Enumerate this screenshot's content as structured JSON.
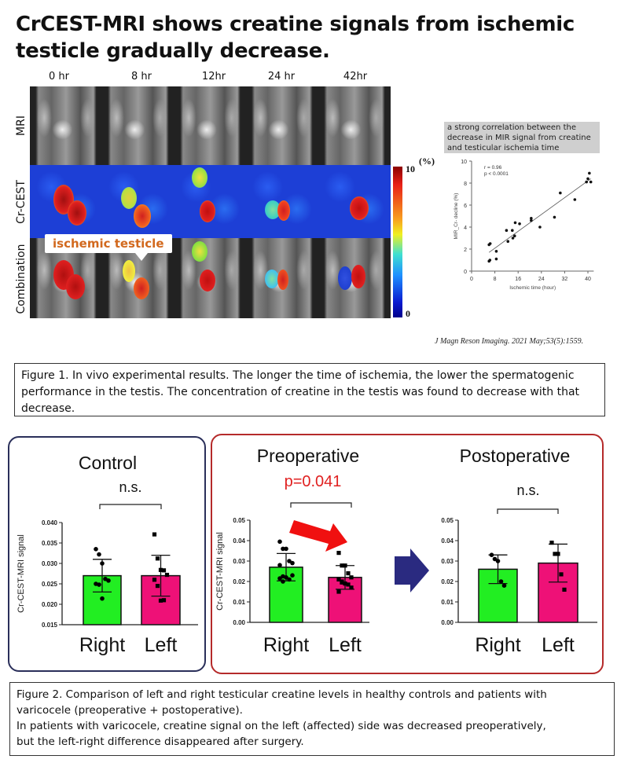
{
  "title": "CrCEST-MRI shows creatine signals from ischemic testicle gradually decrease.",
  "mri_figure": {
    "columns": [
      "0 hr",
      "8 hr",
      "12hr",
      "24 hr",
      "42hr"
    ],
    "rows": [
      "MRI",
      "Cr-CEST",
      "Combination"
    ],
    "callout": "ischemic testicle",
    "colorbar": {
      "unit": "(%)",
      "max": "10",
      "min": "0",
      "colors": [
        "#8b0000",
        "#f0f020",
        "#40e0d0",
        "#00008b"
      ]
    }
  },
  "correlation_note": "a strong correlation between the decrease in MIR signal from creatine and testicular ischemia time",
  "citation": "J Magn Reson Imaging. 2021 May;53(5):1559.",
  "figure1_caption": "Figure 1. In vivo experimental results. The longer the time of ischemia, the lower the spermatogenic performance in the testis. The concentration of creatine in the testis was found to decrease with that decrease.",
  "figure2_caption_lines": [
    "Figure 2. Comparison of left and right testicular creatine levels in healthy controls and patients with",
    "varicocele (preoperative + postoperative).",
    "In patients with varicocele, creatine signal on the left (affected) side was decreased preoperatively,",
    "but the left-right difference disappeared after surgery."
  ],
  "colors": {
    "right_bar": "#22ee22",
    "left_bar": "#ee1177",
    "control_border": "#2a2f5a",
    "patient_border": "#b52a2a",
    "significance": "#e02020",
    "arrow_red": "#f01010",
    "arrow_navy": "#2a2a80"
  },
  "chart_data": [
    {
      "type": "scatter",
      "xlabel": "Ischemic time (hour)",
      "ylabel": "MIR_Cr- decline (%)",
      "xlim": [
        0,
        42
      ],
      "ylim": [
        0,
        10
      ],
      "xticks": [
        0,
        8,
        16,
        24,
        32,
        40
      ],
      "yticks": [
        0,
        2,
        4,
        6,
        8,
        10
      ],
      "annotations": [
        "r = 0.96",
        "p < 0.0001"
      ],
      "x": [
        6,
        6.3,
        6,
        6.4,
        8.5,
        8.5,
        12,
        12.5,
        14,
        14.2,
        14.8,
        15,
        16.5,
        20.5,
        20.5,
        23.5,
        28.5,
        30.5,
        35.5,
        39.5,
        40,
        40.5,
        41
      ],
      "y": [
        0.9,
        1.0,
        2.4,
        2.5,
        1.1,
        1.8,
        3.7,
        2.7,
        3.7,
        3.0,
        3.2,
        4.4,
        4.3,
        4.8,
        4.6,
        4.0,
        4.9,
        7.1,
        6.5,
        8.1,
        8.4,
        8.9,
        8.1
      ],
      "trendline": {
        "x": [
          6,
          41
        ],
        "y": [
          1.7,
          8.4
        ]
      }
    },
    {
      "type": "bar",
      "title": "Control",
      "significance": "n.s.",
      "ylabel": "Cr-CEST-MRI signal",
      "categories": [
        "Right",
        "Left"
      ],
      "ylim": [
        0.015,
        0.04
      ],
      "yticks": [
        "0.015",
        "0.020",
        "0.025",
        "0.030",
        "0.035",
        "0.040"
      ],
      "series": [
        {
          "values": [
            0.027,
            0.027
          ],
          "sd": [
            0.004,
            0.005
          ],
          "points": [
            [
              0.0335,
              0.0322,
              0.03,
              0.0262,
              0.0258,
              0.025,
              0.0248,
              0.0214
            ],
            [
              0.0371,
              0.0312,
              0.0284,
              0.0283,
              0.0272,
              0.026,
              0.0245,
              0.0209,
              0.021
            ]
          ]
        }
      ]
    },
    {
      "type": "bar",
      "title": "Preoperative",
      "significance": "p=0.041",
      "ylabel": "Cr-CEST-MRI signal",
      "categories": [
        "Right",
        "Left"
      ],
      "ylim": [
        0,
        0.05
      ],
      "yticks": [
        "0.00",
        "0.01",
        "0.02",
        "0.03",
        "0.04",
        "0.05"
      ],
      "series": [
        {
          "values": [
            0.027,
            0.022
          ],
          "sd": [
            0.0067,
            0.0058
          ],
          "points": [
            [
              0.0395,
              0.036,
              0.036,
              0.03,
              0.029,
              0.028,
              0.0225,
              0.022,
              0.021,
              0.023,
              0.0215,
              0.02
            ],
            [
              0.034,
              0.0278,
              0.0278,
              0.024,
              0.022,
              0.021,
              0.02,
              0.019,
              0.0185,
              0.017,
              0.015,
              0.0195
            ]
          ]
        }
      ]
    },
    {
      "type": "bar",
      "title": "Postoperative",
      "significance": "n.s.",
      "ylabel": "",
      "categories": [
        "Right",
        "Left"
      ],
      "ylim": [
        0,
        0.05
      ],
      "yticks": [
        "0.00",
        "0.01",
        "0.02",
        "0.03",
        "0.04",
        "0.05"
      ],
      "series": [
        {
          "values": [
            0.026,
            0.029
          ],
          "sd": [
            0.007,
            0.0093
          ],
          "points": [
            [
              0.033,
              0.031,
              0.03,
              0.02,
              0.018
            ],
            [
              0.039,
              0.0335,
              0.0335,
              0.0235,
              0.016
            ]
          ]
        }
      ]
    }
  ]
}
